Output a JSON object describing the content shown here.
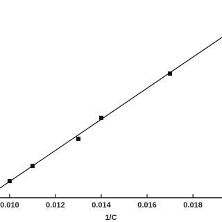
{
  "chart_data": {
    "type": "scatter",
    "x_label": "1/C",
    "xlim": [
      0.00958,
      0.01927
    ],
    "ylim": [
      0,
      1
    ],
    "xticks": [
      {
        "value": 0.01,
        "label": "0.010"
      },
      {
        "value": 0.012,
        "label": "0.012"
      },
      {
        "value": 0.014,
        "label": "0.014"
      },
      {
        "value": 0.016,
        "label": "0.016"
      },
      {
        "value": 0.018,
        "label": "0.018"
      }
    ],
    "series": [
      {
        "x": [
          0.01,
          0.011,
          0.013,
          0.014,
          0.017
        ],
        "values": [
          0.084,
          0.161,
          0.298,
          0.404,
          0.628
        ],
        "color": "#111111",
        "marker": "square"
      }
    ],
    "fit_line": {
      "x": [
        0.00958,
        0.01927
      ],
      "values": [
        0.049,
        0.811
      ],
      "color": "#111111"
    }
  }
}
